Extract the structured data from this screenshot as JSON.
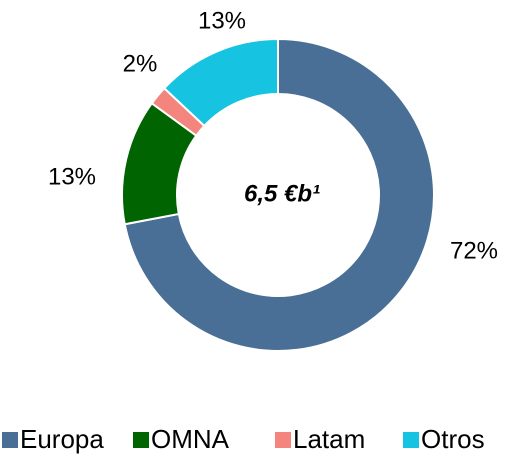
{
  "chart_data": {
    "type": "pie",
    "center_label": "6,5 €b¹",
    "categories": [
      "Europa",
      "OMNA",
      "Latam",
      "Otros"
    ],
    "values": [
      72,
      13,
      2,
      13
    ],
    "value_labels": [
      "72%",
      "13%",
      "2%",
      "13%"
    ],
    "colors": [
      "#4a6f96",
      "#006400",
      "#f4857e",
      "#16c3e0"
    ],
    "legend": "bottom"
  }
}
